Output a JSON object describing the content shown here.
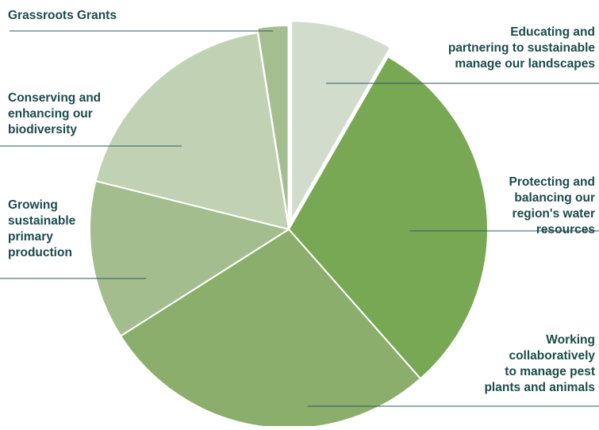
{
  "chart_data": {
    "type": "pie",
    "title": "",
    "slices": [
      {
        "label": "Educating and partnering to sustainable manage our landscapes",
        "label_lines": [
          "Educating and",
          "partnering to sustainable",
          "manage our landscapes"
        ],
        "value": 8.3,
        "color": "#d1dccd"
      },
      {
        "label": "Protecting and balancing our region's water resources",
        "label_lines": [
          "Protecting and",
          "balancing our",
          "region's water",
          "resources"
        ],
        "value": 30.2,
        "color": "#78a854"
      },
      {
        "label": "Working collaboratively to manage pest plants and animals",
        "label_lines": [
          "Working",
          "collaboratively",
          "to manage pest",
          "plants and animals"
        ],
        "value": 27.5,
        "color": "#8bae6c"
      },
      {
        "label": "Growing sustainable primary production",
        "label_lines": [
          "Growing",
          "sustainable",
          "primary",
          "production"
        ],
        "value": 12.9,
        "color": "#a3bd8f"
      },
      {
        "label": "Conserving and enhancing our biodiversity",
        "label_lines": [
          "Conserving and",
          "enhancing our",
          "biodiversity"
        ],
        "value": 18.6,
        "color": "#c1d2b4"
      },
      {
        "label": "Grassroots Grants",
        "label_lines": [
          "Grassroots Grants"
        ],
        "value": 2.5,
        "color": "#a5be90"
      }
    ],
    "legend": "none",
    "label_color": "#1d4a4b",
    "leader_line_color": "#2d5a5b"
  }
}
